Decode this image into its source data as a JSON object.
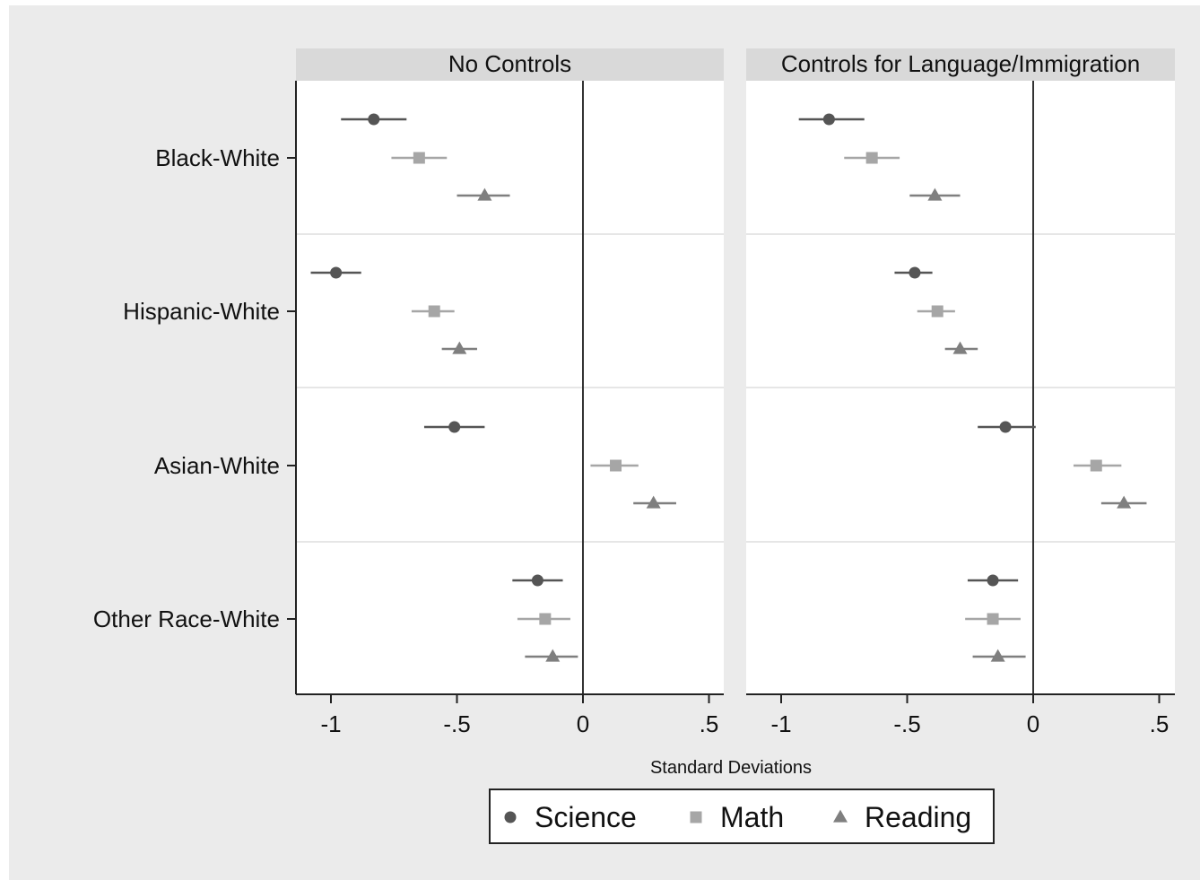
{
  "chart_data": {
    "type": "scatter",
    "xlabel": "Standard Deviations",
    "categories": [
      "Black-White",
      "Hispanic-White",
      "Asian-White",
      "Other Race-White"
    ],
    "x_ticks": [
      {
        "value": -1,
        "label": "-1"
      },
      {
        "value": -0.5,
        "label": "-.5"
      },
      {
        "value": 0,
        "label": "0"
      },
      {
        "value": 0.5,
        "label": ".5"
      }
    ],
    "xlim": [
      -1.15,
      0.55
    ],
    "reference_line_x": 0,
    "legend": {
      "position": "bottom",
      "entries": [
        {
          "name": "Science",
          "marker": "circle",
          "color": "#555555"
        },
        {
          "name": "Math",
          "marker": "square",
          "color": "#a6a6a6"
        },
        {
          "name": "Reading",
          "marker": "triangle",
          "color": "#7f7f7f"
        }
      ]
    },
    "panels": [
      {
        "title": "No Controls",
        "series": [
          {
            "name": "Science",
            "estimates": [
              -0.83,
              -0.98,
              -0.51,
              -0.18
            ],
            "ci_low": [
              -0.96,
              -1.08,
              -0.63,
              -0.28
            ],
            "ci_high": [
              -0.7,
              -0.88,
              -0.39,
              -0.08
            ]
          },
          {
            "name": "Math",
            "estimates": [
              -0.65,
              -0.59,
              0.13,
              -0.15
            ],
            "ci_low": [
              -0.76,
              -0.68,
              0.03,
              -0.26
            ],
            "ci_high": [
              -0.54,
              -0.51,
              0.22,
              -0.05
            ]
          },
          {
            "name": "Reading",
            "estimates": [
              -0.39,
              -0.49,
              0.28,
              -0.12
            ],
            "ci_low": [
              -0.5,
              -0.56,
              0.2,
              -0.23
            ],
            "ci_high": [
              -0.29,
              -0.42,
              0.37,
              -0.02
            ]
          }
        ]
      },
      {
        "title": "Controls for Language/Immigration",
        "series": [
          {
            "name": "Science",
            "estimates": [
              -0.81,
              -0.47,
              -0.11,
              -0.16
            ],
            "ci_low": [
              -0.93,
              -0.55,
              -0.22,
              -0.26
            ],
            "ci_high": [
              -0.67,
              -0.4,
              0.01,
              -0.06
            ]
          },
          {
            "name": "Math",
            "estimates": [
              -0.64,
              -0.38,
              0.25,
              -0.16
            ],
            "ci_low": [
              -0.75,
              -0.46,
              0.16,
              -0.27
            ],
            "ci_high": [
              -0.53,
              -0.31,
              0.35,
              -0.05
            ]
          },
          {
            "name": "Reading",
            "estimates": [
              -0.39,
              -0.29,
              0.36,
              -0.14
            ],
            "ci_low": [
              -0.49,
              -0.35,
              0.27,
              -0.24
            ],
            "ci_high": [
              -0.29,
              -0.22,
              0.45,
              -0.03
            ]
          }
        ]
      }
    ]
  }
}
